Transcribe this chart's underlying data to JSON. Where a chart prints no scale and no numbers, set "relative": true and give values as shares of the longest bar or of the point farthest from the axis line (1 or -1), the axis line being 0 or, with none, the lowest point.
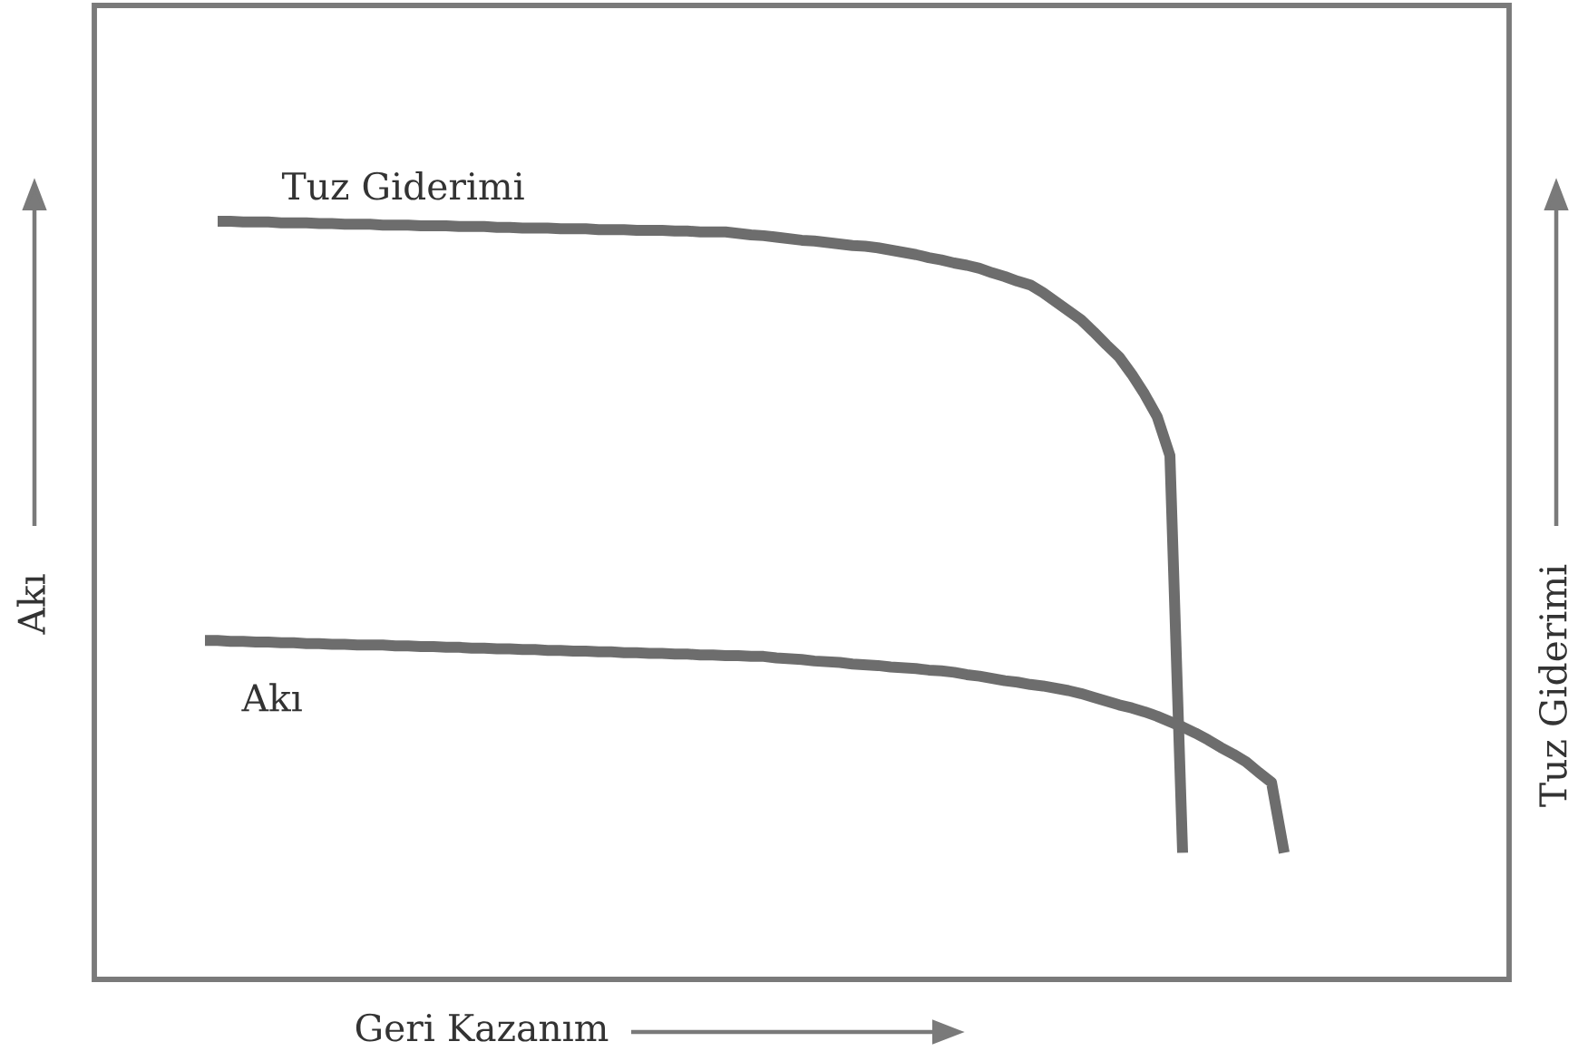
{
  "chart_data": {
    "type": "line",
    "relative": true,
    "xlabel": "Geri Kazanım",
    "ylabel": "Akı",
    "annotations": [
      "Tuz Giderimi"
    ],
    "line_style": "solid",
    "marker": "none",
    "categories": [
      null,
      null,
      null,
      null,
      null,
      null,
      null,
      null,
      null,
      null,
      null,
      null,
      null,
      null,
      null,
      null,
      null,
      null,
      null,
      null,
      null,
      null,
      null,
      null,
      null,
      null,
      null,
      null,
      null,
      null,
      null,
      null,
      null,
      null,
      null,
      null,
      null,
      null,
      null,
      null,
      null,
      null,
      null,
      null,
      null,
      null,
      null,
      null,
      null,
      null,
      null,
      null,
      null,
      null,
      null,
      null,
      null,
      null,
      null,
      null,
      null,
      null,
      null,
      null,
      null,
      null,
      null,
      null,
      null,
      null,
      null,
      null,
      null,
      null,
      null,
      null,
      null,
      null,
      null,
      null,
      null,
      null,
      null,
      null,
      null,
      null
    ],
    "series": [
      {
        "name": "Tuz Giderimi",
        "color": "#6d6d6d",
        "values": [
          null,
          1.0,
          1.0,
          0.999,
          0.999,
          0.999,
          0.998,
          0.998,
          0.998,
          0.997,
          0.997,
          0.996,
          0.996,
          0.996,
          0.995,
          0.995,
          0.995,
          0.994,
          0.994,
          0.994,
          0.993,
          0.993,
          0.993,
          0.992,
          0.992,
          0.991,
          0.991,
          0.991,
          0.99,
          0.99,
          0.99,
          0.989,
          0.989,
          0.989,
          0.988,
          0.988,
          0.988,
          0.987,
          0.987,
          0.986,
          0.986,
          0.986,
          0.984,
          0.982,
          0.981,
          0.979,
          0.977,
          0.975,
          0.974,
          0.972,
          0.97,
          0.968,
          0.967,
          0.965,
          0.962,
          0.959,
          0.956,
          0.952,
          0.949,
          0.945,
          0.942,
          0.938,
          0.932,
          0.927,
          0.921,
          0.916,
          0.906,
          0.894,
          0.882,
          0.87,
          0.854,
          0.837,
          0.821,
          0.798,
          0.772,
          0.742,
          0.691,
          0.167,
          null,
          null,
          null,
          null,
          null,
          null,
          null,
          null
        ]
      },
      {
        "name": "Akı",
        "color": "#6d6d6d",
        "values": [
          0.447,
          0.447,
          0.446,
          0.446,
          0.445,
          0.445,
          0.444,
          0.444,
          0.443,
          0.443,
          0.442,
          0.442,
          0.441,
          0.441,
          0.441,
          0.44,
          0.44,
          0.439,
          0.439,
          0.438,
          0.438,
          0.437,
          0.437,
          0.436,
          0.436,
          0.435,
          0.435,
          0.434,
          0.434,
          0.433,
          0.433,
          0.432,
          0.432,
          0.431,
          0.431,
          0.43,
          0.43,
          0.429,
          0.429,
          0.428,
          0.428,
          0.427,
          0.427,
          0.426,
          0.426,
          0.424,
          0.423,
          0.422,
          0.42,
          0.419,
          0.418,
          0.416,
          0.415,
          0.414,
          0.412,
          0.411,
          0.41,
          0.408,
          0.407,
          0.405,
          0.402,
          0.4,
          0.397,
          0.394,
          0.392,
          0.389,
          0.387,
          0.384,
          0.381,
          0.377,
          0.372,
          0.367,
          0.362,
          0.358,
          0.353,
          0.347,
          0.34,
          0.333,
          0.325,
          0.316,
          0.306,
          0.297,
          0.287,
          0.273,
          0.26,
          0.167
        ]
      }
    ]
  }
}
